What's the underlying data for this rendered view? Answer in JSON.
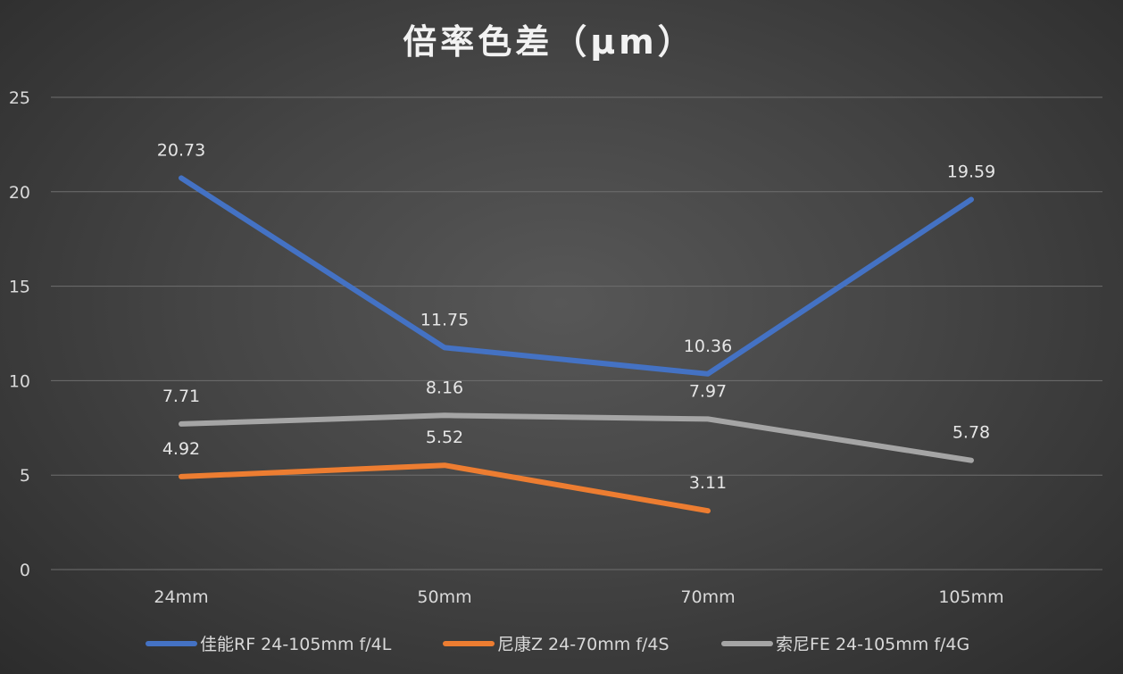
{
  "chart_data": {
    "type": "line",
    "title": "倍率色差（μm）",
    "categories": [
      "24mm",
      "50mm",
      "70mm",
      "105mm"
    ],
    "ylim": [
      0,
      25
    ],
    "yticks": [
      0,
      5,
      10,
      15,
      20,
      25
    ],
    "grid": true,
    "legend_position": "bottom",
    "series": [
      {
        "name": "佳能RF 24-105mm f/4L",
        "color": "#4472c4",
        "values": [
          20.73,
          11.75,
          10.36,
          19.59
        ],
        "labels": [
          "20.73",
          "11.75",
          "10.36",
          "19.59"
        ]
      },
      {
        "name": "尼康Z 24-70mm f/4S",
        "color": "#ed7d31",
        "values": [
          4.92,
          5.52,
          3.11,
          null
        ],
        "labels": [
          "4.92",
          "5.52",
          "3.11",
          ""
        ]
      },
      {
        "name": "索尼FE 24-105mm f/4G",
        "color": "#a5a5a5",
        "values": [
          7.71,
          8.16,
          7.97,
          5.78
        ],
        "labels": [
          "7.71",
          "8.16",
          "7.97",
          "5.78"
        ]
      }
    ]
  }
}
